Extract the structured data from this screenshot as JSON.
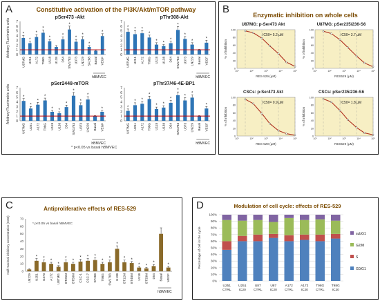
{
  "panels": {
    "A": {
      "letter": "A",
      "title": "Constitutive activation of the PI3K/Akt/mTOR pathway",
      "ylabel": "Arbitrary Fluorimetric units",
      "footnote": "* p<0.05 vs basal hBMVEC"
    },
    "B": {
      "letter": "B",
      "title": "Enzymatic inhibition on whole cells"
    },
    "C": {
      "letter": "C",
      "title": "Antiproliferative effects of RES-529"
    },
    "D": {
      "letter": "D",
      "title": "Modulation of cell cycle:  effects of RES-529"
    }
  },
  "colors": {
    "bar": "#2e75b6",
    "redline": "#c00000",
    "bar_c": "#8a6a2a",
    "curve": "#b03020",
    "curve_bg": "#f7efc4",
    "title": "#7a4a00"
  },
  "chart_data": [
    {
      "id": "A1",
      "type": "bar",
      "title": "pSer473 -Akt",
      "ylabel": "Arbitrary Fluorimetric units",
      "categories": [
        "U87MG",
        "U251",
        "A172",
        "T98G",
        "U118",
        "U138",
        "D54",
        "SW1783",
        "U373",
        "LN229",
        "SF268",
        "Basal",
        "VEGF"
      ],
      "group_label": "hBMVEC",
      "values": [
        3.5,
        2.4,
        3.7,
        4.6,
        2.8,
        1.6,
        3.2,
        5.3,
        2.7,
        3.2,
        1.6,
        0.8,
        3.9
      ],
      "errors": [
        0.5,
        0.4,
        0.5,
        0.6,
        0.4,
        0.3,
        0.5,
        0.7,
        0.5,
        0.6,
        0.3,
        0.1,
        0.5
      ],
      "significant": [
        true,
        true,
        true,
        true,
        true,
        false,
        true,
        true,
        true,
        true,
        true,
        false,
        true
      ],
      "ylim": [
        0,
        7
      ],
      "yticks": [
        0,
        1,
        2,
        3,
        4,
        5,
        6,
        7
      ],
      "ref_line": 1
    },
    {
      "id": "A2",
      "type": "bar",
      "title": "pThr308-Akt",
      "categories": [
        "U87MG",
        "U251",
        "A172",
        "T98G",
        "U118",
        "U138",
        "D54",
        "SW1783",
        "U373",
        "LN229",
        "Basal",
        "VEGF"
      ],
      "group_label": "hBMVEC",
      "values": [
        4.8,
        4.3,
        4.5,
        3.6,
        2.1,
        1.8,
        2.4,
        5.2,
        3.3,
        2.1,
        1.0,
        2.5
      ],
      "errors": [
        0.6,
        0.7,
        0.5,
        0.5,
        0.4,
        0.3,
        0.4,
        0.7,
        0.5,
        0.4,
        0.1,
        0.5
      ],
      "significant": [
        true,
        true,
        true,
        true,
        true,
        true,
        true,
        true,
        true,
        true,
        false,
        true
      ],
      "ylim": [
        0,
        7
      ],
      "yticks": [
        0,
        1,
        2,
        3,
        4,
        5,
        6,
        7
      ],
      "ref_line": 1
    },
    {
      "id": "A3",
      "type": "bar",
      "title": "pSer2448-mTOR",
      "ylabel": "Arbitrary Fluorimetric units",
      "categories": [
        "U87MG",
        "U251",
        "A172",
        "T98G",
        "U118",
        "U138",
        "D54",
        "SW1783",
        "U373",
        "LN229",
        "Basal",
        "VEGF"
      ],
      "group_label": "hBMVEC",
      "values": [
        4.2,
        2.6,
        3.4,
        4.3,
        1.9,
        1.6,
        2.9,
        5.3,
        3.3,
        4.5,
        1.0,
        1.9
      ],
      "errors": [
        0.5,
        0.4,
        0.5,
        0.5,
        0.3,
        0.3,
        0.4,
        0.7,
        0.5,
        0.6,
        0.1,
        0.3
      ],
      "significant": [
        true,
        true,
        true,
        true,
        true,
        true,
        true,
        true,
        true,
        true,
        false,
        true
      ],
      "ylim": [
        0,
        7
      ],
      "yticks": [
        0,
        1,
        2,
        3,
        4,
        5,
        6,
        7
      ],
      "ref_line": 1
    },
    {
      "id": "A4",
      "type": "bar",
      "title": "pThr37/46-4E-BP1",
      "categories": [
        "U87MG",
        "U251",
        "A172",
        "T98G",
        "U118",
        "U138",
        "D54",
        "SW1783",
        "U373",
        "LN229",
        "Basal",
        "VEGF"
      ],
      "group_label": "hBMVEC",
      "values": [
        2.1,
        3.3,
        3.6,
        4.6,
        2.5,
        2.8,
        3.8,
        5.4,
        4.3,
        4.9,
        1.0,
        2.6
      ],
      "errors": [
        0.4,
        0.5,
        0.5,
        0.6,
        0.4,
        0.4,
        0.5,
        0.7,
        0.6,
        0.6,
        0.1,
        0.4
      ],
      "significant": [
        true,
        true,
        true,
        true,
        true,
        true,
        true,
        true,
        true,
        true,
        false,
        true
      ],
      "ylim": [
        0,
        7
      ],
      "yticks": [
        0,
        1,
        2,
        3,
        4,
        5,
        6,
        7
      ],
      "ref_line": 1
    },
    {
      "id": "B1",
      "type": "line",
      "title": "U87MG: p-Ser473 Akt",
      "ic50": "IC50= 5.2 µM",
      "xlabel": "RES-529 (µM)",
      "ylabel": "% of inhibition",
      "xscale": "log",
      "xticklabels": [
        "10¹",
        "10²",
        "10³",
        "10⁴",
        "10⁵"
      ],
      "yticks": [
        0,
        20,
        40,
        60,
        80,
        100
      ],
      "x": [
        0.1,
        0.3,
        1,
        3,
        10,
        30,
        100
      ],
      "y": [
        97,
        92,
        78,
        58,
        38,
        16,
        5
      ]
    },
    {
      "id": "B2",
      "type": "line",
      "title": "U87MG: pSer235/236-S6",
      "ic50": "IC50= 3.7 µM",
      "xlabel": "RES529 (µM)",
      "ylabel": "% of inhibition",
      "xscale": "log",
      "xticklabels": [
        "10¹",
        "10²",
        "10³",
        "10⁴",
        "10⁵"
      ],
      "yticks": [
        0,
        20,
        40,
        60,
        80,
        100
      ],
      "x": [
        0.1,
        0.3,
        1,
        3,
        10,
        30,
        100
      ],
      "y": [
        96,
        90,
        74,
        54,
        32,
        14,
        4
      ]
    },
    {
      "id": "B3",
      "type": "line",
      "title": "CSCs: p-Ser473 Akt",
      "ic50": "IC50= 0.9 µM",
      "xlabel": "RES-529 (µM)",
      "ylabel": "% of inhibition",
      "xscale": "log",
      "xticklabels": [
        "10¹",
        "10²",
        "10³",
        "10⁴",
        "10⁵"
      ],
      "yticks": [
        0,
        20,
        40,
        60,
        80,
        100
      ],
      "x": [
        0.1,
        0.3,
        1,
        3,
        10,
        30,
        100
      ],
      "y": [
        95,
        84,
        58,
        32,
        14,
        6,
        2
      ]
    },
    {
      "id": "B4",
      "type": "line",
      "title": "CSCs: pSer235/236-S6",
      "ic50": "IC50= 1.8 µM",
      "xlabel": "RES529 (µM)",
      "ylabel": "% of inhibition",
      "xscale": "log",
      "xticklabels": [
        "10¹",
        "10²",
        "10³",
        "10⁴",
        "10⁵"
      ],
      "yticks": [
        0,
        20,
        40,
        60,
        80,
        100
      ],
      "x": [
        0.1,
        0.3,
        1,
        3,
        10,
        30,
        100
      ],
      "y": [
        96,
        88,
        66,
        42,
        22,
        8,
        3
      ]
    },
    {
      "id": "C",
      "type": "bar",
      "title": "Antiproliferative effects of RES-529",
      "ylabel": "Half maximal inhibitory concentration (IC50)",
      "note": "* p<0.05 vs basal hBMVEC",
      "categories": [
        "LN229",
        "U251",
        "U373",
        "A172",
        "U87MG",
        "BT25M",
        "BT50M",
        "CSC-1",
        "CSC-7",
        "SF268",
        "T98G",
        "SW1783",
        "U138",
        "BT12M",
        "BT48M",
        "U118",
        "BT33M",
        "D54",
        "Basal",
        "VEGF"
      ],
      "group_label": "hBMVEC",
      "values": [
        2.5,
        14,
        12,
        10,
        6,
        12,
        10,
        13,
        14,
        15,
        10,
        12,
        30,
        12,
        11,
        5,
        4,
        7,
        50,
        5
      ],
      "errors": [
        1,
        3,
        3,
        2,
        1.5,
        3,
        2,
        3,
        3,
        3,
        2,
        3,
        4,
        3,
        2,
        1.5,
        1,
        2,
        8,
        1.5
      ],
      "significant": [
        false,
        true,
        true,
        true,
        true,
        true,
        true,
        true,
        true,
        true,
        true,
        true,
        true,
        true,
        true,
        true,
        true,
        true,
        false,
        true
      ],
      "ylim": [
        0,
        70
      ],
      "yticks": [
        0,
        10,
        20,
        30,
        40,
        50,
        60,
        70
      ]
    },
    {
      "id": "D",
      "type": "bar",
      "stacked": true,
      "title": "Modulation of cell cycle:  effects of RES-529",
      "ylabel": "Percentage of cell in the cycle",
      "categories": [
        "U251 CTRL",
        "U251 IC20",
        "U87 CTRL",
        "U87 IC20",
        "A172 CTRL",
        "A172 IC20",
        "T98G CTRL",
        "T98G IC20"
      ],
      "ylim": [
        0,
        100
      ],
      "yticks": [
        "0%",
        "10%",
        "20%",
        "30%",
        "40%",
        "50%",
        "60%",
        "70%",
        "80%",
        "90%",
        "100%"
      ],
      "series": [
        {
          "name": "G0/G1",
          "color": "#4f81bd",
          "values": [
            47,
            60,
            60,
            65,
            60,
            62,
            60,
            64
          ]
        },
        {
          "name": "S",
          "color": "#c0504d",
          "values": [
            13,
            8,
            10,
            6,
            9,
            8,
            10,
            7
          ]
        },
        {
          "name": "G2/M",
          "color": "#9bbb59",
          "values": [
            32,
            23,
            22,
            18,
            26,
            22,
            23,
            20
          ]
        },
        {
          "name": "subG1",
          "color": "#8064a2",
          "values": [
            8,
            9,
            8,
            11,
            5,
            8,
            7,
            9
          ]
        }
      ],
      "legend_position": "right"
    }
  ]
}
